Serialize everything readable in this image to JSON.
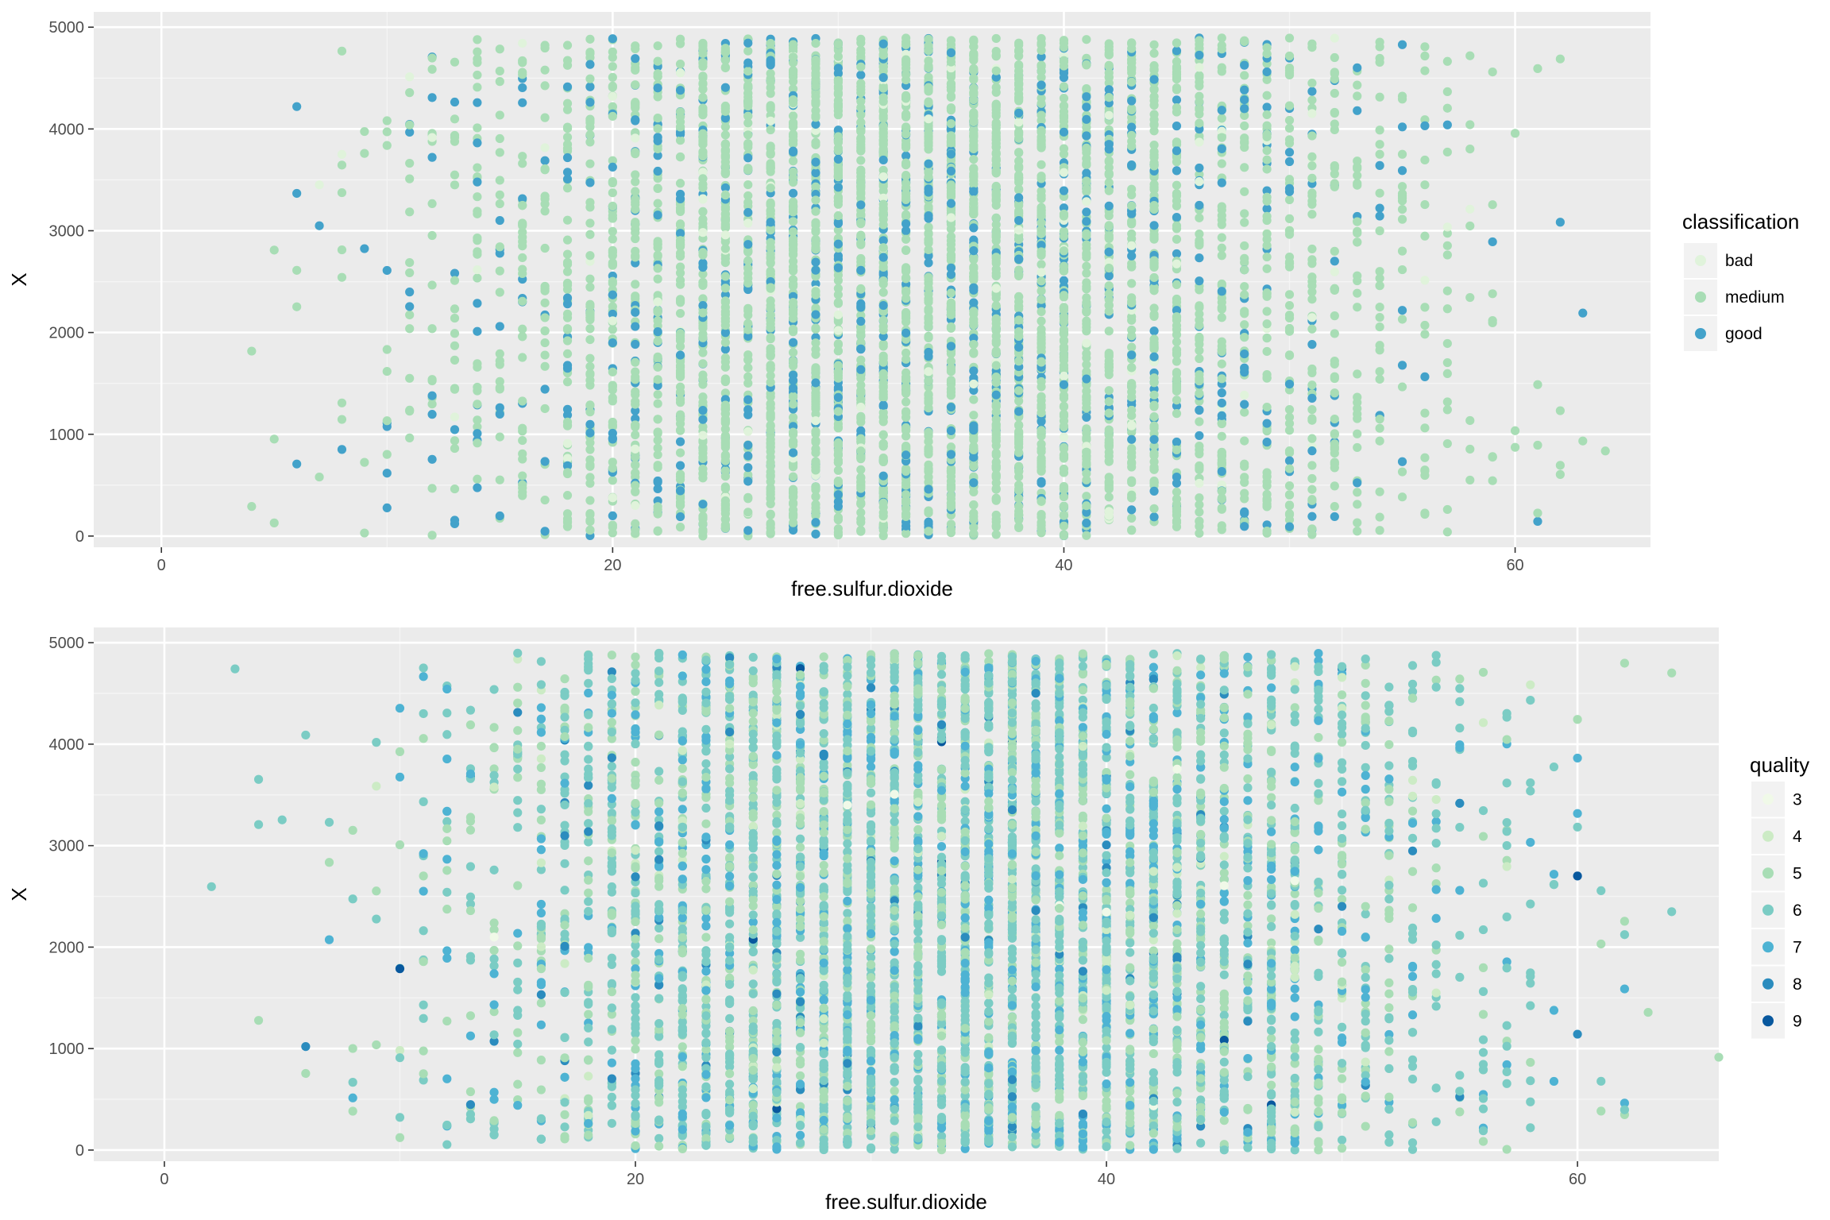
{
  "chart_data": [
    {
      "type": "scatter",
      "title": "",
      "xlabel": "free.sulfur.dioxide",
      "ylabel": "X",
      "xlim": [
        -3,
        66
      ],
      "ylim": [
        -110,
        5150
      ],
      "xticks": [
        0,
        20,
        40,
        60
      ],
      "yticks": [
        0,
        1000,
        2000,
        3000,
        4000,
        5000
      ],
      "grid": true,
      "legend": {
        "title": "classification",
        "position": "right",
        "entries": [
          {
            "label": "bad",
            "color": "#E0F3DB"
          },
          {
            "label": "medium",
            "color": "#A8DDB5"
          },
          {
            "label": "good",
            "color": "#43A2CA"
          }
        ]
      },
      "point_cloud": {
        "note_x_domain": [
          2,
          66
        ],
        "y_domain": [
          0,
          4898
        ],
        "x_is_integer_valued": true,
        "approx_points": 4898,
        "seed": 1
      }
    },
    {
      "type": "scatter",
      "title": "",
      "xlabel": "free.sulfur.dioxide",
      "ylabel": "X",
      "xlim": [
        -3,
        66
      ],
      "ylim": [
        -110,
        5150
      ],
      "xticks": [
        0,
        20,
        40,
        60
      ],
      "yticks": [
        0,
        1000,
        2000,
        3000,
        4000,
        5000
      ],
      "grid": true,
      "legend": {
        "title": "quality",
        "position": "right",
        "entries": [
          {
            "label": "3",
            "color": "#F0F9E8"
          },
          {
            "label": "4",
            "color": "#CCEBC5"
          },
          {
            "label": "5",
            "color": "#A8DDB5"
          },
          {
            "label": "6",
            "color": "#7BCCC4"
          },
          {
            "label": "7",
            "color": "#4EB3D3"
          },
          {
            "label": "8",
            "color": "#2B8CBE"
          },
          {
            "label": "9",
            "color": "#08589E"
          }
        ]
      },
      "point_cloud": {
        "x_domain": [
          2,
          66
        ],
        "y_domain": [
          0,
          4898
        ],
        "x_is_integer_valued": true,
        "approx_points": 4898,
        "seed": 1
      }
    }
  ]
}
